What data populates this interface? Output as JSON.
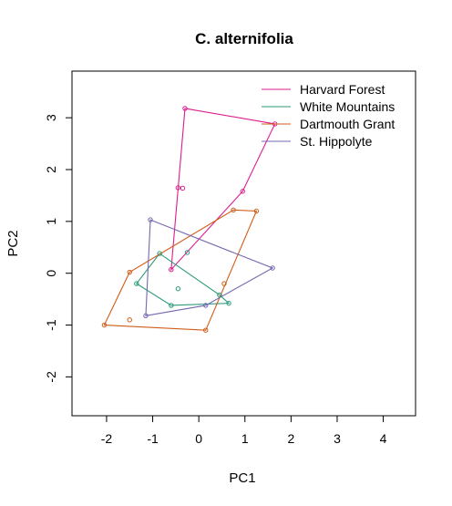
{
  "chart_data": {
    "type": "scatter",
    "title": "C. alternifolia",
    "xlabel": "PC1",
    "ylabel": "PC2",
    "xlim": [
      -2.75,
      4.7
    ],
    "ylim": [
      -2.75,
      3.9
    ],
    "xticks": [
      -2,
      -1,
      0,
      1,
      2,
      3,
      4
    ],
    "yticks": [
      -2,
      -1,
      0,
      1,
      2,
      3
    ],
    "legend_position": "top-right",
    "grid": false,
    "series": [
      {
        "name": "Harvard Forest",
        "color": "#dd1c8e",
        "points": [
          [
            -0.3,
            3.18
          ],
          [
            1.65,
            2.88
          ],
          [
            0.95,
            1.58
          ],
          [
            -0.45,
            1.65
          ],
          [
            -0.35,
            1.64
          ],
          [
            -0.6,
            0.07
          ]
        ],
        "hull": [
          [
            -0.3,
            3.18
          ],
          [
            1.65,
            2.88
          ],
          [
            0.95,
            1.58
          ],
          [
            -0.6,
            0.07
          ]
        ]
      },
      {
        "name": "White Mountains",
        "color": "#2a9a79",
        "points": [
          [
            -0.85,
            0.38
          ],
          [
            -1.35,
            -0.2
          ],
          [
            -0.6,
            -0.62
          ],
          [
            0.65,
            -0.58
          ],
          [
            0.45,
            -0.42
          ],
          [
            -0.45,
            -0.3
          ],
          [
            -0.25,
            0.4
          ]
        ],
        "hull": [
          [
            -0.85,
            0.38
          ],
          [
            -1.35,
            -0.2
          ],
          [
            -0.6,
            -0.62
          ],
          [
            0.65,
            -0.58
          ],
          [
            0.45,
            -0.42
          ]
        ]
      },
      {
        "name": "Dartmouth Grant",
        "color": "#cf5c17",
        "points": [
          [
            -2.05,
            -1.0
          ],
          [
            0.15,
            -1.1
          ],
          [
            1.25,
            1.2
          ],
          [
            0.75,
            1.22
          ],
          [
            -1.5,
            0.02
          ],
          [
            -1.5,
            -0.9
          ],
          [
            0.55,
            -0.2
          ]
        ],
        "hull": [
          [
            -2.05,
            -1.0
          ],
          [
            0.15,
            -1.1
          ],
          [
            1.25,
            1.2
          ],
          [
            0.75,
            1.22
          ],
          [
            -1.5,
            0.02
          ]
        ]
      },
      {
        "name": "St. Hippolyte",
        "color": "#7567b0",
        "points": [
          [
            -1.15,
            -0.82
          ],
          [
            0.15,
            -0.62
          ],
          [
            1.6,
            0.1
          ],
          [
            -1.05,
            1.03
          ]
        ],
        "hull": [
          [
            -1.15,
            -0.82
          ],
          [
            0.15,
            -0.62
          ],
          [
            1.6,
            0.1
          ],
          [
            -1.05,
            1.03
          ]
        ]
      }
    ]
  }
}
